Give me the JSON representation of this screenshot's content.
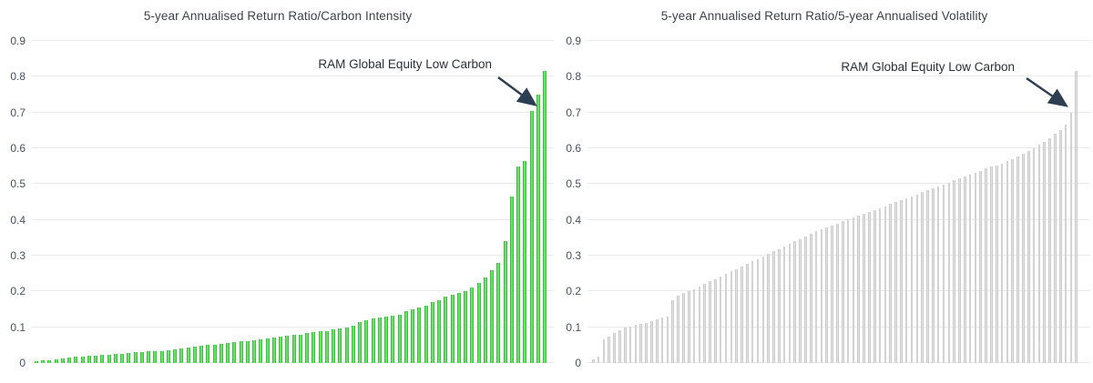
{
  "figure": {
    "background": "#ffffff",
    "annotation_label": "RAM Global Equity Low Carbon",
    "arrow_color": "#2c3e52",
    "gridline_color": "#e9e9e9",
    "axis_label_color": "#46505f"
  },
  "chart_data": [
    {
      "type": "bar",
      "title": "5-year Annualised Return Ratio/Carbon Intensity",
      "xlabel": "",
      "ylabel": "",
      "ylim": [
        0,
        0.9
      ],
      "grid": true,
      "bar_color": "#3ec93e",
      "ytick_labels": [
        "0",
        "0.1",
        "0.2",
        "0.3",
        "0.4",
        "0.5",
        "0.6",
        "0.7",
        "0.8",
        "0.9"
      ],
      "annotation": "RAM Global Equity Low Carbon",
      "annotation_points_to": "second-tallest bars near right edge (~0.70-0.75)",
      "values": [
        0.005,
        0.007,
        0.008,
        0.01,
        0.013,
        0.015,
        0.017,
        0.018,
        0.02,
        0.021,
        0.022,
        0.024,
        0.025,
        0.026,
        0.028,
        0.03,
        0.031,
        0.032,
        0.033,
        0.034,
        0.036,
        0.038,
        0.04,
        0.042,
        0.045,
        0.048,
        0.05,
        0.052,
        0.054,
        0.056,
        0.058,
        0.06,
        0.062,
        0.064,
        0.066,
        0.068,
        0.07,
        0.073,
        0.076,
        0.078,
        0.08,
        0.083,
        0.086,
        0.088,
        0.09,
        0.093,
        0.096,
        0.1,
        0.104,
        0.115,
        0.12,
        0.125,
        0.128,
        0.13,
        0.132,
        0.135,
        0.145,
        0.15,
        0.155,
        0.16,
        0.17,
        0.175,
        0.185,
        0.19,
        0.195,
        0.2,
        0.21,
        0.225,
        0.24,
        0.26,
        0.28,
        0.34,
        0.465,
        0.55,
        0.565,
        0.705,
        0.75,
        0.815
      ]
    },
    {
      "type": "bar",
      "title": "5-year Annualised Return Ratio/5-year Annualised Volatility",
      "xlabel": "",
      "ylabel": "",
      "ylim": [
        0,
        0.9
      ],
      "grid": true,
      "bar_color": "#d4d4d4",
      "ytick_labels": [
        "0",
        "0.1",
        "0.2",
        "0.3",
        "0.4",
        "0.5",
        "0.6",
        "0.7",
        "0.8",
        "0.9"
      ],
      "annotation": "RAM Global Equity Low Carbon",
      "annotation_points_to": "second-to-last bar (~0.70), last bar ~0.82",
      "values": [
        0.01,
        0.018,
        0.065,
        0.075,
        0.085,
        0.092,
        0.098,
        0.102,
        0.106,
        0.11,
        0.113,
        0.117,
        0.121,
        0.126,
        0.13,
        0.175,
        0.188,
        0.195,
        0.2,
        0.207,
        0.214,
        0.221,
        0.228,
        0.235,
        0.242,
        0.249,
        0.256,
        0.263,
        0.27,
        0.277,
        0.284,
        0.291,
        0.298,
        0.305,
        0.312,
        0.319,
        0.326,
        0.333,
        0.34,
        0.347,
        0.354,
        0.361,
        0.368,
        0.375,
        0.38,
        0.385,
        0.39,
        0.396,
        0.401,
        0.406,
        0.412,
        0.417,
        0.422,
        0.428,
        0.433,
        0.438,
        0.444,
        0.449,
        0.454,
        0.46,
        0.466,
        0.471,
        0.477,
        0.482,
        0.488,
        0.493,
        0.499,
        0.504,
        0.51,
        0.515,
        0.521,
        0.526,
        0.532,
        0.537,
        0.543,
        0.548,
        0.553,
        0.558,
        0.564,
        0.57,
        0.577,
        0.584,
        0.592,
        0.6,
        0.609,
        0.618,
        0.628,
        0.64,
        0.652,
        0.665,
        0.7,
        0.815
      ]
    }
  ]
}
